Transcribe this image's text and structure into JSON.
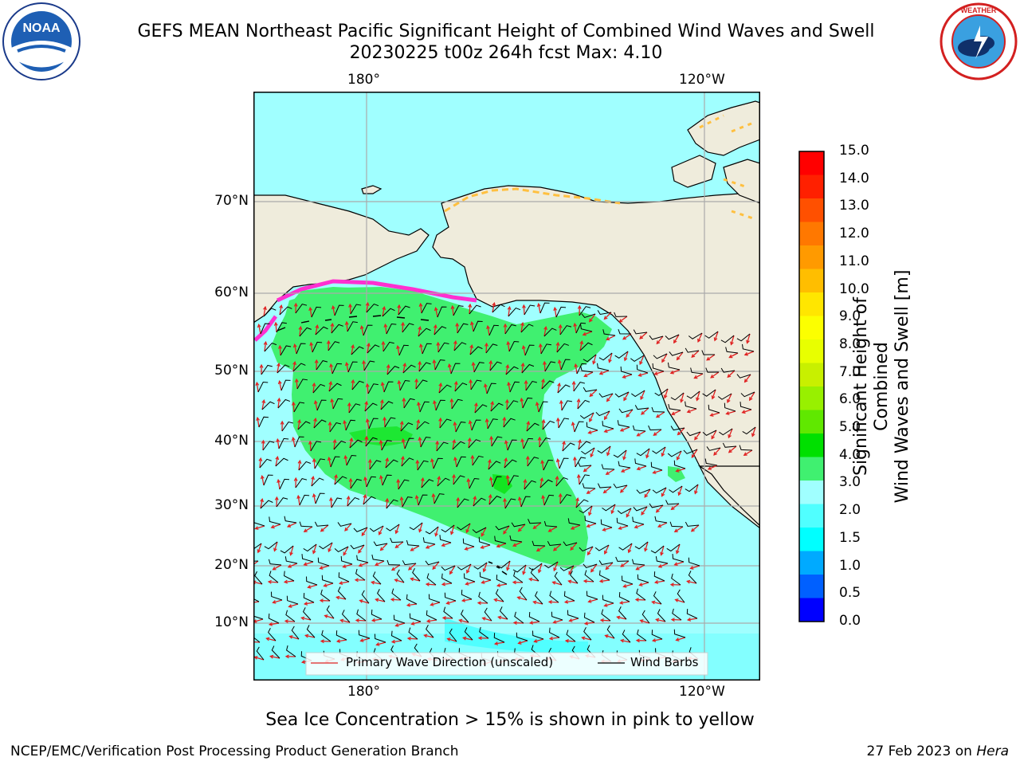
{
  "title": {
    "line1": "GEFS MEAN Northeast Pacific Significant Height of Combined Wind Waves and Swell",
    "line2": "20230225 t00z 264h fcst   Max: 4.10"
  },
  "map": {
    "lon_labels_top": [
      "180°",
      "120°W"
    ],
    "lon_labels_bottom": [
      "180°",
      "120°W"
    ],
    "lat_labels": [
      "70°N",
      "60°N",
      "50°N",
      "40°N",
      "30°N",
      "20°N",
      "10°N"
    ],
    "legend": {
      "wave_direction": "Primary Wave Direction (unscaled)",
      "wind_barbs": "Wind Barbs"
    }
  },
  "colorbar": {
    "label_line1": "Significant Height of Combined",
    "label_line2": "Wind Waves and Swell [m]",
    "ticks": [
      "15.0",
      "14.0",
      "13.0",
      "12.0",
      "11.0",
      "10.0",
      "9.0",
      "8.0",
      "7.0",
      "6.0",
      "5.0",
      "4.0",
      "3.0",
      "2.0",
      "1.5",
      "1.0",
      "0.5",
      "0.0"
    ],
    "colors": [
      "#ff0000",
      "#ff2000",
      "#ff5000",
      "#ff7800",
      "#ff9a00",
      "#ffbe00",
      "#ffe600",
      "#fcff00",
      "#e8ff00",
      "#c8f000",
      "#98f000",
      "#60e800",
      "#00e000",
      "#40f070",
      "#a0ffff",
      "#50ffff",
      "#00ffff",
      "#00aaff",
      "#0060ff",
      "#0000ff"
    ]
  },
  "logos": {
    "noaa": "NOAA",
    "nws": "NATIONAL WEATHER SERVICE"
  },
  "note": "Sea Ice Concentration > 15% is shown in pink to yellow",
  "footer": {
    "left": "NCEP/EMC/Verification Post Processing Product Generation Branch",
    "right_date": "27 Feb 2023 on",
    "right_machine": "Hera"
  }
}
